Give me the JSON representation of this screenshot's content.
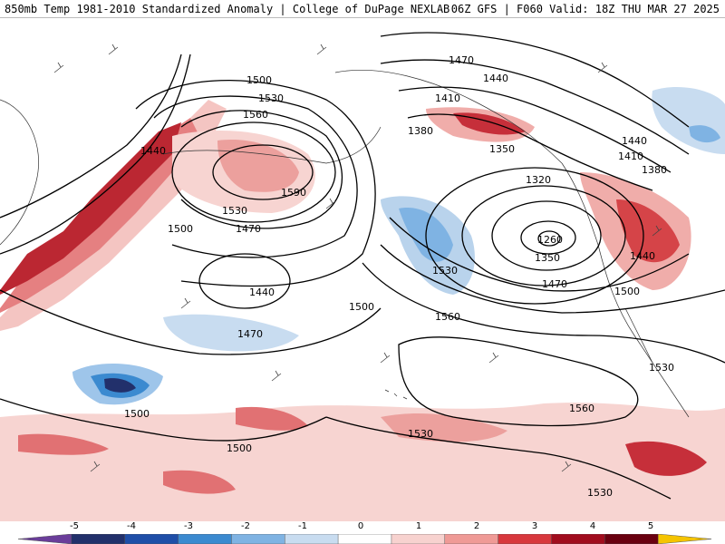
{
  "header": {
    "left": "850mb Temp 1981-2010 Standardized Anomaly | College of DuPage NEXLAB",
    "right": "06Z GFS | F060 Valid: 18Z THU MAR 27 2025"
  },
  "contour_labels": [
    "1470",
    "1440",
    "1410",
    "1380",
    "1350",
    "1500",
    "1530",
    "1560",
    "1440",
    "1590",
    "1530",
    "1500",
    "1470",
    "1440",
    "1470",
    "1500",
    "1500",
    "1530",
    "1320",
    "1260",
    "1350",
    "1470",
    "1500",
    "1440",
    "1410",
    "1380",
    "1440",
    "1560",
    "1530",
    "1500",
    "1530",
    "1560",
    "1530"
  ],
  "colorbar": {
    "ticks": [
      "-5",
      "-4",
      "-3",
      "-2",
      "-1",
      "0",
      "1",
      "2",
      "3",
      "4",
      "5"
    ],
    "colors": [
      "#6a3d9a",
      "#22306b",
      "#1f4ea8",
      "#3b8ad0",
      "#7fb3e3",
      "#c8dcf0",
      "#ffffff",
      "#f7d2cf",
      "#ef9a96",
      "#d8383d",
      "#a10d1e",
      "#6a0010",
      "#f5c400"
    ]
  }
}
